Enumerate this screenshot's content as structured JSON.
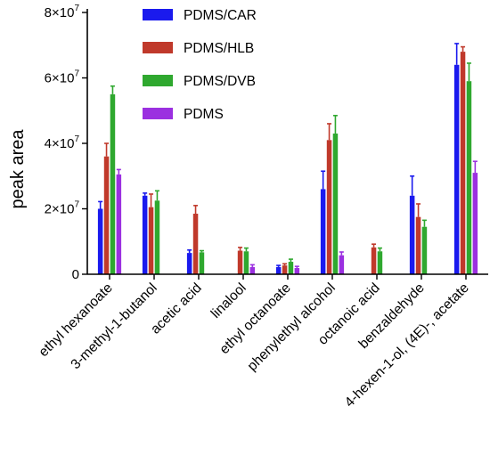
{
  "chart_data": {
    "type": "bar",
    "ylabel": "peak area",
    "xlabel": "",
    "ylim": [
      0,
      80000000
    ],
    "yticks": [
      {
        "value": 0,
        "mant": "0",
        "exp": ""
      },
      {
        "value": 20000000,
        "mant": "2×10",
        "exp": "7"
      },
      {
        "value": 40000000,
        "mant": "4×10",
        "exp": "7"
      },
      {
        "value": 60000000,
        "mant": "6×10",
        "exp": "7"
      },
      {
        "value": 80000000,
        "mant": "8×10",
        "exp": "7"
      }
    ],
    "categories": [
      "ethyl hexanoate",
      "3-methyl-1-butanol",
      "acetic acid",
      "linalool",
      "ethyl octanoate",
      "phenylethyl alcohol",
      "octanoic acid",
      "benzaldehyde",
      "4-hexen-1-ol, (4E)-, acetate"
    ],
    "legend_position": "top",
    "series": [
      {
        "name": "PDMS/CAR",
        "color": "#1a1aee",
        "values": [
          20000000,
          24000000,
          6500000,
          0,
          2200000,
          26000000,
          0,
          24000000,
          64000000
        ],
        "errors": [
          2200000,
          800000,
          900000,
          0,
          500000,
          5500000,
          0,
          6000000,
          6500000
        ]
      },
      {
        "name": "PDMS/HLB",
        "color": "#c0392b",
        "values": [
          36000000,
          20500000,
          18500000,
          7200000,
          2700000,
          41000000,
          8200000,
          17500000,
          68000000
        ],
        "errors": [
          4000000,
          4000000,
          2500000,
          1000000,
          500000,
          5000000,
          1000000,
          4000000,
          1500000
        ]
      },
      {
        "name": "PDMS/DVB",
        "color": "#2fa82f",
        "values": [
          55000000,
          22500000,
          6700000,
          7000000,
          3800000,
          43000000,
          7000000,
          14500000,
          59000000
        ],
        "errors": [
          2500000,
          3000000,
          500000,
          1000000,
          800000,
          5500000,
          1000000,
          2000000,
          5500000
        ]
      },
      {
        "name": "PDMS",
        "color": "#9b30e0",
        "values": [
          30500000,
          0,
          0,
          2200000,
          1900000,
          5800000,
          0,
          0,
          31000000
        ],
        "errors": [
          1500000,
          0,
          0,
          700000,
          500000,
          1000000,
          0,
          0,
          3500000
        ]
      }
    ]
  }
}
